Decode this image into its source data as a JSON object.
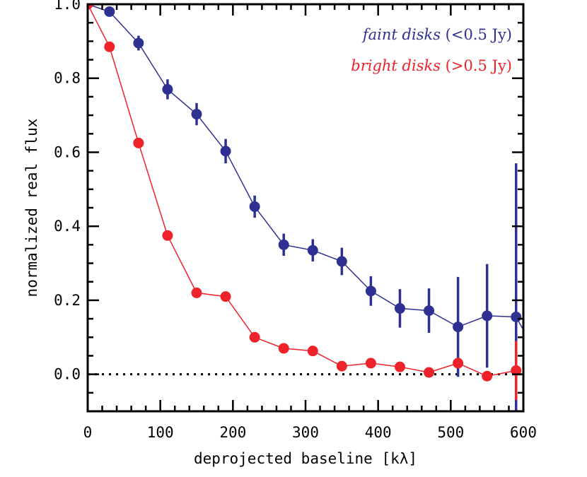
{
  "chart_data": {
    "type": "line",
    "title": "",
    "xlabel": "deprojected baseline [kλ]",
    "ylabel": "normalized real flux",
    "xlim": [
      0,
      600
    ],
    "ylim": [
      -0.1,
      1.0
    ],
    "x_ticks": [
      "0",
      "100",
      "200",
      "300",
      "400",
      "500",
      "600"
    ],
    "y_ticks": [
      "0.0",
      "0.2",
      "0.4",
      "0.6",
      "0.8",
      "1.0"
    ],
    "reference_line": {
      "y": 0.0,
      "style": "dotted"
    },
    "legend_position": "top-right",
    "series": [
      {
        "name": "faint disks",
        "name_suffix": " (<0.5 Jy)",
        "color": "#2e3191",
        "x": [
          0,
          30,
          70,
          110,
          150,
          190,
          230,
          270,
          310,
          350,
          390,
          430,
          470,
          510,
          550,
          590,
          600
        ],
        "y": [
          1.0,
          0.98,
          0.895,
          0.77,
          0.703,
          0.603,
          0.453,
          0.35,
          0.335,
          0.305,
          0.225,
          0.178,
          0.172,
          0.128,
          0.158,
          0.155,
          0.12
        ],
        "err": [
          0,
          0.01,
          0.02,
          0.027,
          0.03,
          0.033,
          0.03,
          0.03,
          0.03,
          0.037,
          0.04,
          0.052,
          0.06,
          0.135,
          0.14,
          0.415,
          0
        ],
        "markers": [
          false,
          true,
          true,
          true,
          true,
          true,
          true,
          true,
          true,
          true,
          true,
          true,
          true,
          true,
          true,
          true,
          false
        ]
      },
      {
        "name": "bright disks",
        "name_suffix": " (>0.5 Jy)",
        "color": "#ee2229",
        "x": [
          0,
          30,
          70,
          110,
          150,
          190,
          230,
          270,
          310,
          350,
          390,
          430,
          470,
          510,
          550,
          590
        ],
        "y": [
          1.0,
          0.885,
          0.625,
          0.375,
          0.22,
          0.21,
          0.1,
          0.07,
          0.063,
          0.022,
          0.03,
          0.02,
          0.005,
          0.03,
          -0.005,
          0.01
        ],
        "err": [
          0,
          0,
          0,
          0,
          0,
          0,
          0,
          0,
          0,
          0,
          0,
          0,
          0,
          0,
          0,
          0.08
        ],
        "markers": [
          true,
          true,
          true,
          true,
          true,
          true,
          true,
          true,
          true,
          true,
          true,
          true,
          true,
          true,
          true,
          true
        ]
      }
    ]
  }
}
